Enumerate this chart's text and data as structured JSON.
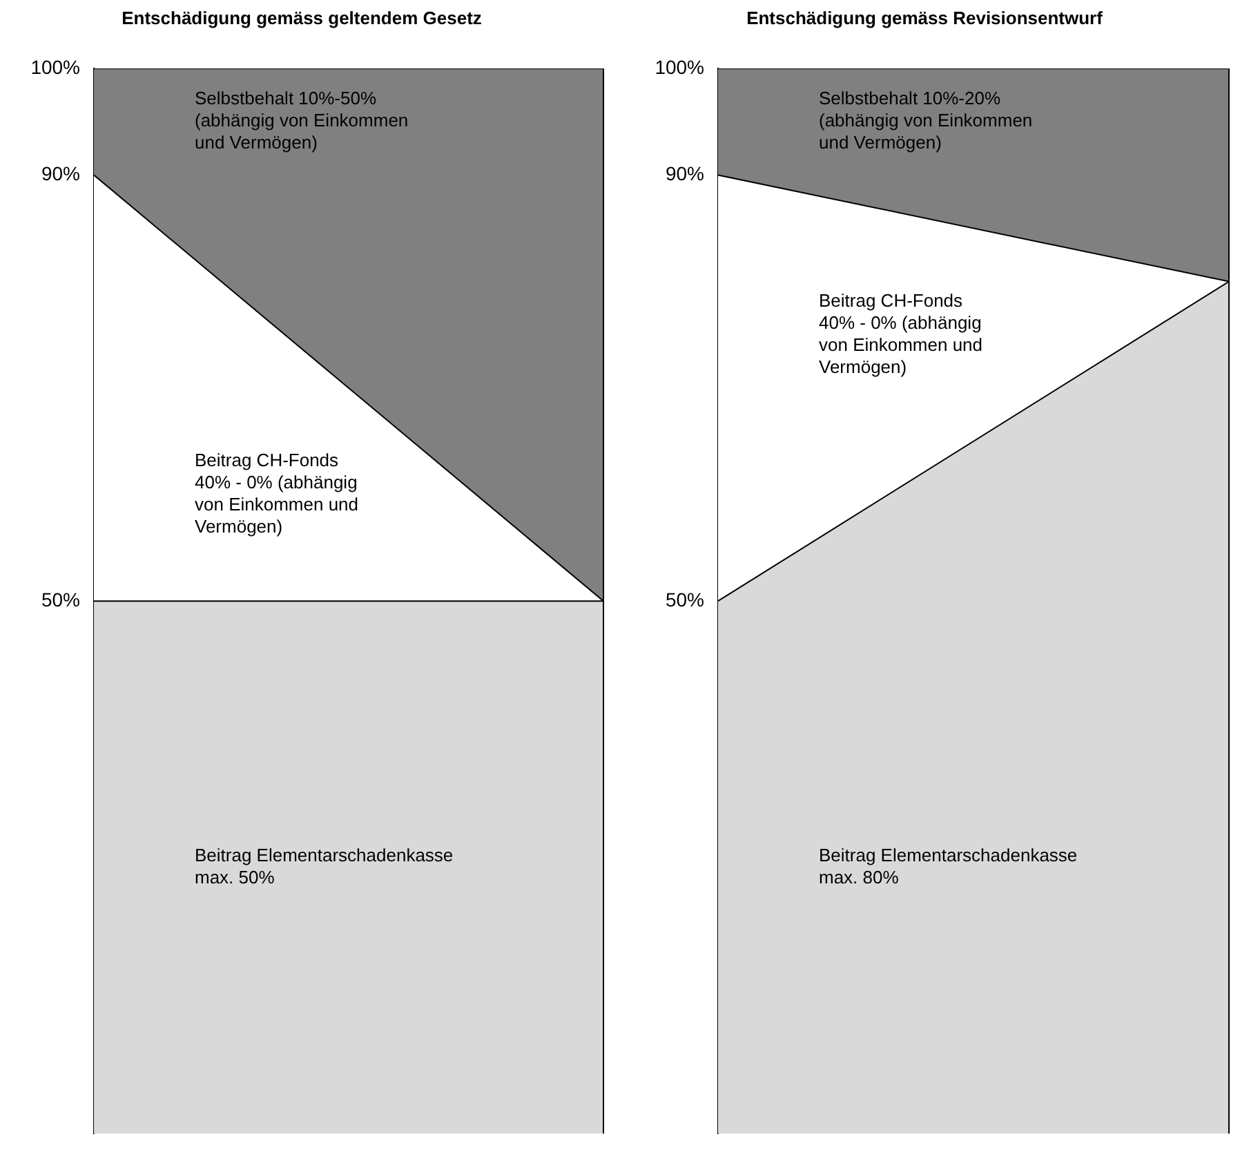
{
  "chart_data": [
    {
      "type": "area",
      "title": "Entschädigung gemäss geltendem Gesetz",
      "categories": [
        null,
        null
      ],
      "stacked": true,
      "ylim": [
        0,
        100
      ],
      "yticks": [
        {
          "value": 50,
          "label": "50%"
        },
        {
          "value": 90,
          "label": "90%"
        },
        {
          "value": 100,
          "label": "100%"
        }
      ],
      "grid": false,
      "legend": false,
      "tick_labels": "y",
      "series": [
        {
          "name": "Beitrag Elementarschadenkasse max. 50%",
          "color": "#d9d9d9",
          "values": [
            50,
            50
          ]
        },
        {
          "name": "Beitrag CH-Fonds 40% - 0% (abhängig von Einkommen und Vermögen)",
          "color": "#ffffff",
          "values": [
            40,
            0
          ]
        },
        {
          "name": "Selbstbehalt 10%-50% (abhängig von Einkommen und Vermögen)",
          "color": "#808080",
          "values": [
            10,
            50
          ]
        }
      ]
    },
    {
      "type": "area",
      "title": "Entschädigung gemäss Revisionsentwurf",
      "categories": [
        null,
        null
      ],
      "stacked": true,
      "ylim": [
        0,
        100
      ],
      "yticks": [
        {
          "value": 50,
          "label": "50%"
        },
        {
          "value": 90,
          "label": "90%"
        },
        {
          "value": 100,
          "label": "100%"
        }
      ],
      "grid": false,
      "legend": false,
      "tick_labels": "y",
      "series": [
        {
          "name": "Beitrag Elementarschadenkasse max. 80%",
          "color": "#d9d9d9",
          "values": [
            50,
            80
          ]
        },
        {
          "name": "Beitrag CH-Fonds 40% - 0% (abhängig von Einkommen und Vermögen)",
          "color": "#ffffff",
          "values": [
            40,
            0
          ]
        },
        {
          "name": "Selbstbehalt 10%-20% (abhängig von Einkommen und Vermögen)",
          "color": "#808080",
          "values": [
            10,
            20
          ]
        }
      ]
    }
  ]
}
